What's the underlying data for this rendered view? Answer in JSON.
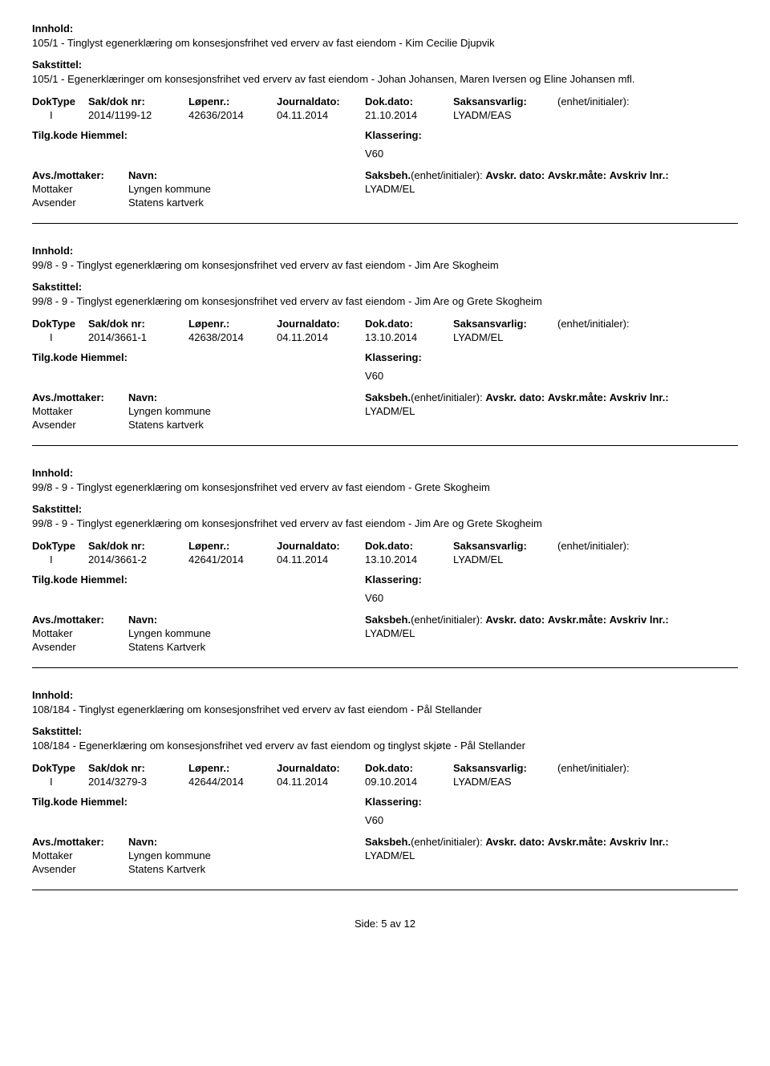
{
  "labels": {
    "innhold": "Innhold:",
    "sakstittel": "Sakstittel:",
    "doktype": "DokType",
    "sakdok": "Sak/dok nr:",
    "lopenr": "Løpenr.:",
    "journaldato": "Journaldato:",
    "dokdato": "Dok.dato:",
    "saksansvarlig": "Saksansvarlig:",
    "enhet": "(enhet/initialer):",
    "tilgkode": "Tilg.kode",
    "hjemmel": "Hiemmel:",
    "klassering": "Klassering:",
    "avsmottaker": "Avs./mottaker:",
    "navn": "Navn:",
    "saksbeh": "Saksbeh.",
    "saksbeh_paren": "(enhet/initialer):",
    "avskr_dato": "Avskr. dato:",
    "avskr_mate": "Avskr.måte:",
    "avskriv_lnr": "Avskriv lnr.:",
    "mottaker": "Mottaker",
    "avsender": "Avsender"
  },
  "footer": {
    "label": "Side:",
    "current": "5",
    "sep": "av",
    "total": "12"
  },
  "entries": [
    {
      "innhold": "105/1 - Tinglyst egenerklæring om konsesjonsfrihet ved erverv av fast eiendom - Kim Cecilie Djupvik",
      "sakstittel": "105/1 - Egenerklæringer om konsesjonsfrihet ved erverv av fast eiendom - Johan Johansen, Maren Iversen og Eline Johansen mfl.",
      "doktype": "I",
      "sakdok": "2014/1199-12",
      "lopenr": "42636/2014",
      "journaldato": "04.11.2014",
      "dokdato": "21.10.2014",
      "saksansvarlig": "LYADM/EAS",
      "klassering": "V60",
      "mottaker_navn": "Lyngen kommune",
      "saksbeh_val": "LYADM/EL",
      "avsender_navn": "Statens kartverk"
    },
    {
      "innhold": "99/8 - 9 - Tinglyst egenerklæring om konsesjonsfrihet ved erverv av fast eiendom - Jim Are Skogheim",
      "sakstittel": "99/8 - 9 - Tinglyst egenerklæring om konsesjonsfrihet ved erverv av fast eiendom - Jim Are og Grete Skogheim",
      "doktype": "I",
      "sakdok": "2014/3661-1",
      "lopenr": "42638/2014",
      "journaldato": "04.11.2014",
      "dokdato": "13.10.2014",
      "saksansvarlig": "LYADM/EL",
      "klassering": "V60",
      "mottaker_navn": "Lyngen kommune",
      "saksbeh_val": "LYADM/EL",
      "avsender_navn": "Statens kartverk"
    },
    {
      "innhold": "99/8 - 9 - Tinglyst egenerklæring om konsesjonsfrihet ved erverv av fast eiendom - Grete Skogheim",
      "sakstittel": "99/8 - 9 - Tinglyst egenerklæring om konsesjonsfrihet ved erverv av fast eiendom - Jim Are og Grete Skogheim",
      "doktype": "I",
      "sakdok": "2014/3661-2",
      "lopenr": "42641/2014",
      "journaldato": "04.11.2014",
      "dokdato": "13.10.2014",
      "saksansvarlig": "LYADM/EL",
      "klassering": "V60",
      "mottaker_navn": "Lyngen kommune",
      "saksbeh_val": "LYADM/EL",
      "avsender_navn": "Statens Kartverk"
    },
    {
      "innhold": "108/184 - Tinglyst egenerklæring om konsesjonsfrihet ved erverv av fast eiendom - Pål Stellander",
      "sakstittel": "108/184 - Egenerklæring om konsesjonsfrihet ved erverv av fast eiendom og tinglyst skjøte - Pål Stellander",
      "doktype": "I",
      "sakdok": "2014/3279-3",
      "lopenr": "42644/2014",
      "journaldato": "04.11.2014",
      "dokdato": "09.10.2014",
      "saksansvarlig": "LYADM/EAS",
      "klassering": "V60",
      "mottaker_navn": "Lyngen kommune",
      "saksbeh_val": "LYADM/EL",
      "avsender_navn": "Statens Kartverk"
    }
  ]
}
